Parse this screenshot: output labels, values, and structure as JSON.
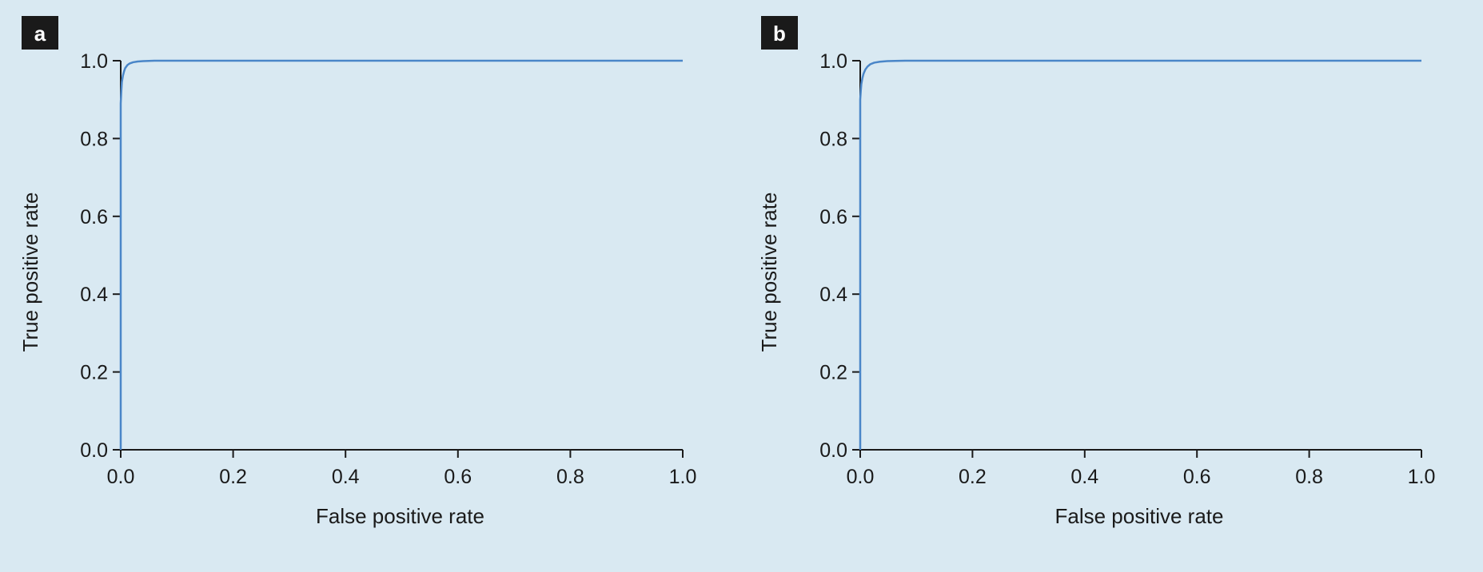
{
  "colors": {
    "background": "#d9e9f2",
    "curve": "#4a86c8",
    "axis": "#1a1a1a",
    "badge": "#1a1a1a"
  },
  "chart_data": [
    {
      "type": "line",
      "panel_label": "a",
      "xlabel": "False positive rate",
      "ylabel": "True positive rate",
      "xlim": [
        0,
        1
      ],
      "ylim": [
        0,
        1
      ],
      "xticks": [
        "0.0",
        "0.2",
        "0.4",
        "0.6",
        "0.8",
        "1.0"
      ],
      "yticks": [
        "0.0",
        "0.2",
        "0.4",
        "0.6",
        "0.8",
        "1.0"
      ],
      "grid": false,
      "series": [
        {
          "x": [
            0,
            0,
            0.001,
            0.002,
            0.004,
            0.006,
            0.008,
            0.012,
            0.016,
            0.022,
            0.03,
            0.04,
            0.05,
            0.06,
            1.0
          ],
          "y": [
            0,
            0.89,
            0.92,
            0.945,
            0.962,
            0.973,
            0.981,
            0.989,
            0.993,
            0.996,
            0.998,
            0.999,
            0.9995,
            1.0,
            1.0
          ]
        }
      ]
    },
    {
      "type": "line",
      "panel_label": "b",
      "xlabel": "False positive rate",
      "ylabel": "True positive rate",
      "xlim": [
        0,
        1
      ],
      "ylim": [
        0,
        1
      ],
      "xticks": [
        "0.0",
        "0.2",
        "0.4",
        "0.6",
        "0.8",
        "1.0"
      ],
      "yticks": [
        "0.0",
        "0.2",
        "0.4",
        "0.6",
        "0.8",
        "1.0"
      ],
      "grid": false,
      "series": [
        {
          "x": [
            0,
            0,
            0.001,
            0.002,
            0.004,
            0.006,
            0.009,
            0.013,
            0.018,
            0.025,
            0.035,
            0.048,
            0.062,
            0.08,
            1.0
          ],
          "y": [
            0,
            0.9,
            0.922,
            0.94,
            0.956,
            0.967,
            0.977,
            0.985,
            0.991,
            0.995,
            0.9975,
            0.999,
            0.9995,
            1.0,
            1.0
          ]
        }
      ]
    }
  ]
}
